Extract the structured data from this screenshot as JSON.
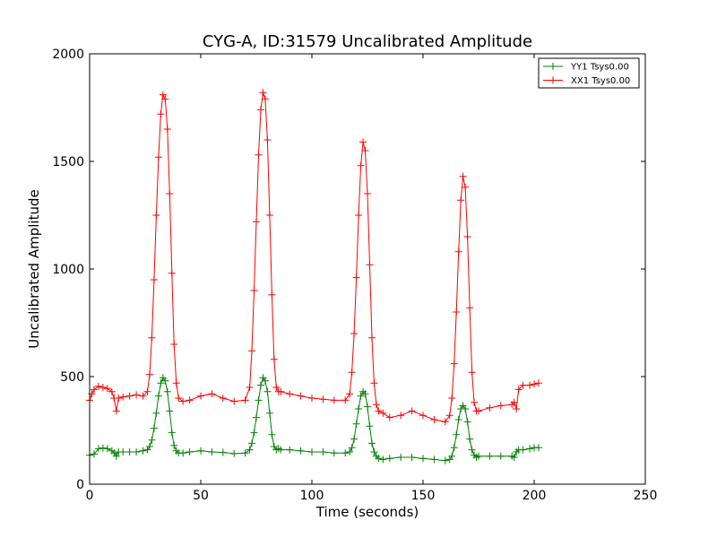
{
  "chart_data": {
    "type": "line",
    "title": "CYG-A, ID:31579 Uncalibrated Amplitude",
    "xlabel": "Time (seconds)",
    "ylabel": "Uncalibrated Amplitude",
    "xlim": [
      0,
      250
    ],
    "ylim": [
      0,
      2000
    ],
    "xticks": [
      0,
      50,
      100,
      150,
      200,
      250
    ],
    "yticks": [
      0,
      500,
      1000,
      1500,
      2000
    ],
    "xtick_labels": [
      "0",
      "50",
      "100",
      "150",
      "200",
      "250"
    ],
    "ytick_labels": [
      "0",
      "500",
      "1000",
      "1500",
      "2000"
    ],
    "grid": false,
    "legend_position": "top-right",
    "marker": "plus",
    "series": [
      {
        "name": "YY1 Tsys0.00",
        "color": "#008000",
        "x": [
          0,
          2,
          4,
          6,
          8,
          10,
          11,
          12,
          13,
          15,
          18,
          21,
          24,
          26,
          27,
          28,
          29,
          30,
          31,
          32,
          33,
          34,
          35,
          36,
          37,
          38,
          39,
          40,
          42,
          45,
          50,
          55,
          60,
          65,
          70,
          72,
          73,
          74,
          75,
          76,
          77,
          78,
          79,
          80,
          81,
          82,
          83,
          84,
          85,
          86,
          90,
          95,
          100,
          105,
          110,
          115,
          117,
          118,
          119,
          120,
          121,
          122,
          123,
          124,
          125,
          126,
          127,
          128,
          129,
          130,
          132,
          135,
          140,
          145,
          150,
          155,
          160,
          162,
          163,
          164,
          165,
          166,
          167,
          168,
          169,
          170,
          171,
          172,
          173,
          174,
          175,
          180,
          185,
          190,
          191,
          192,
          193,
          195,
          198,
          200,
          202
        ],
        "values": [
          135,
          140,
          165,
          168,
          165,
          155,
          145,
          130,
          150,
          150,
          150,
          150,
          155,
          160,
          175,
          205,
          260,
          330,
          410,
          470,
          495,
          480,
          430,
          340,
          240,
          180,
          155,
          145,
          145,
          150,
          155,
          150,
          148,
          142,
          145,
          160,
          190,
          240,
          310,
          390,
          460,
          495,
          480,
          430,
          330,
          230,
          175,
          160,
          165,
          160,
          160,
          155,
          150,
          150,
          145,
          145,
          150,
          170,
          210,
          280,
          350,
          410,
          430,
          420,
          360,
          270,
          190,
          150,
          130,
          120,
          115,
          120,
          125,
          125,
          120,
          115,
          110,
          115,
          130,
          170,
          230,
          300,
          350,
          365,
          350,
          290,
          210,
          160,
          135,
          125,
          130,
          130,
          130,
          130,
          125,
          150,
          160,
          160,
          165,
          170,
          170
        ]
      },
      {
        "name": "XX1 Tsys0.00",
        "color": "#ff0000",
        "x": [
          0,
          1,
          2,
          4,
          6,
          8,
          10,
          11,
          12,
          13,
          15,
          18,
          21,
          24,
          26,
          27,
          28,
          29,
          30,
          31,
          32,
          33,
          34,
          35,
          36,
          37,
          38,
          39,
          40,
          42,
          45,
          50,
          55,
          60,
          65,
          70,
          72,
          73,
          74,
          75,
          76,
          77,
          78,
          79,
          80,
          81,
          82,
          83,
          84,
          85,
          86,
          90,
          95,
          100,
          105,
          110,
          115,
          117,
          118,
          119,
          120,
          121,
          122,
          123,
          124,
          125,
          126,
          127,
          128,
          129,
          130,
          132,
          135,
          140,
          145,
          150,
          155,
          160,
          162,
          163,
          164,
          165,
          166,
          167,
          168,
          169,
          170,
          171,
          172,
          173,
          174,
          175,
          180,
          185,
          190,
          191,
          192,
          193,
          195,
          198,
          200,
          202
        ],
        "values": [
          390,
          420,
          440,
          455,
          450,
          445,
          430,
          400,
          340,
          400,
          405,
          410,
          415,
          410,
          430,
          510,
          680,
          950,
          1250,
          1520,
          1720,
          1810,
          1790,
          1650,
          1350,
          980,
          650,
          470,
          400,
          385,
          390,
          410,
          420,
          400,
          385,
          390,
          450,
          620,
          900,
          1220,
          1530,
          1740,
          1820,
          1790,
          1600,
          1250,
          880,
          580,
          450,
          430,
          430,
          420,
          410,
          400,
          395,
          390,
          390,
          420,
          520,
          700,
          960,
          1250,
          1480,
          1590,
          1550,
          1350,
          1020,
          680,
          470,
          370,
          340,
          330,
          310,
          320,
          340,
          320,
          300,
          290,
          320,
          400,
          560,
          800,
          1080,
          1320,
          1430,
          1380,
          1150,
          820,
          520,
          380,
          340,
          340,
          355,
          365,
          370,
          380,
          350,
          440,
          460,
          460,
          465,
          470
        ]
      }
    ]
  }
}
